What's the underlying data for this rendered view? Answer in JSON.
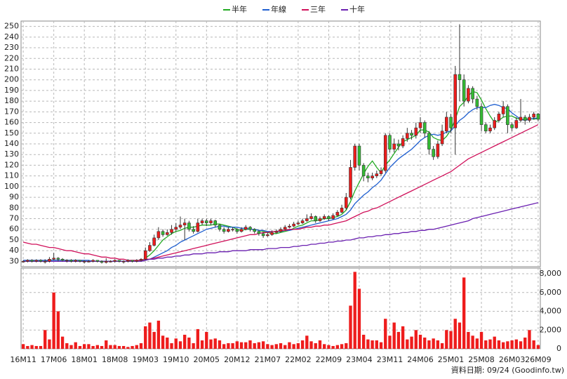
{
  "chart_data": {
    "type": "candlestick",
    "categories": [
      "16M11",
      null,
      null,
      null,
      null,
      null,
      null,
      "17M06",
      null,
      null,
      null,
      null,
      null,
      null,
      "18M01",
      null,
      null,
      null,
      null,
      null,
      null,
      "18M08",
      null,
      null,
      null,
      null,
      null,
      null,
      "19M03",
      null,
      null,
      null,
      null,
      null,
      null,
      "19M10",
      null,
      null,
      null,
      null,
      null,
      null,
      "20M05",
      null,
      null,
      null,
      null,
      null,
      null,
      "20M12",
      null,
      null,
      null,
      null,
      null,
      null,
      "21M07",
      null,
      null,
      null,
      null,
      null,
      null,
      "22M02",
      null,
      null,
      null,
      null,
      null,
      null,
      "22M09",
      null,
      null,
      null,
      null,
      null,
      null,
      "23M04",
      null,
      null,
      null,
      null,
      null,
      null,
      "23M11",
      null,
      null,
      null,
      null,
      null,
      null,
      "24M06",
      null,
      null,
      null,
      null,
      null,
      null,
      "25M01",
      null,
      null,
      null,
      null,
      null,
      null,
      "25M08",
      null,
      null,
      null,
      null,
      null,
      null,
      "26M03",
      null,
      null,
      null,
      null,
      null,
      "26M09"
    ],
    "open": [
      30,
      30,
      31,
      30,
      31,
      30,
      30,
      32,
      33,
      32,
      31,
      31,
      30,
      31,
      30,
      30,
      30,
      31,
      30,
      29,
      30,
      30,
      31,
      30,
      30,
      31,
      30,
      31,
      32,
      40,
      45,
      52,
      58,
      55,
      57,
      60,
      62,
      64,
      66,
      60,
      58,
      66,
      68,
      66,
      68,
      64,
      60,
      58,
      60,
      60,
      58,
      60,
      62,
      60,
      58,
      56,
      54,
      55,
      57,
      58,
      60,
      62,
      63,
      65,
      66,
      68,
      70,
      72,
      68,
      70,
      72,
      70,
      73,
      76,
      80,
      90,
      118,
      138,
      120,
      110,
      108,
      110,
      112,
      115,
      148,
      135,
      140,
      138,
      145,
      150,
      148,
      155,
      160,
      150,
      135,
      128,
      140,
      152,
      165,
      155,
      205,
      200,
      180,
      192,
      182,
      175,
      158,
      152,
      155,
      162,
      168,
      175,
      158,
      155,
      162,
      165,
      162,
      165,
      168
    ],
    "high": [
      31,
      32,
      32,
      32,
      32,
      32,
      34,
      38,
      34,
      33,
      32,
      32,
      32,
      31,
      31,
      31,
      32,
      31,
      31,
      33,
      31,
      32,
      31,
      31,
      32,
      31,
      32,
      33,
      43,
      48,
      55,
      62,
      60,
      60,
      64,
      66,
      72,
      70,
      68,
      63,
      70,
      70,
      70,
      70,
      69,
      65,
      62,
      62,
      62,
      61,
      62,
      64,
      63,
      61,
      59,
      57,
      57,
      59,
      60,
      62,
      64,
      65,
      67,
      68,
      70,
      74,
      75,
      73,
      72,
      74,
      73,
      75,
      78,
      83,
      94,
      125,
      140,
      140,
      122,
      113,
      113,
      115,
      118,
      150,
      150,
      145,
      144,
      148,
      155,
      153,
      160,
      165,
      162,
      152,
      138,
      143,
      158,
      170,
      168,
      213,
      252,
      205,
      195,
      194,
      185,
      178,
      160,
      158,
      165,
      170,
      180,
      177,
      160,
      165,
      182,
      167,
      168,
      170,
      169
    ],
    "low": [
      29,
      29,
      29,
      29,
      29,
      28,
      29,
      31,
      30,
      30,
      29,
      29,
      29,
      29,
      28,
      29,
      29,
      29,
      28,
      28,
      29,
      29,
      29,
      28,
      29,
      29,
      29,
      30,
      31,
      39,
      44,
      50,
      53,
      54,
      55,
      58,
      60,
      50,
      58,
      56,
      57,
      64,
      63,
      64,
      62,
      58,
      56,
      57,
      58,
      56,
      57,
      59,
      58,
      56,
      54,
      52,
      53,
      54,
      56,
      57,
      59,
      61,
      62,
      64,
      65,
      67,
      69,
      66,
      67,
      69,
      68,
      69,
      72,
      75,
      78,
      88,
      115,
      115,
      105,
      104,
      106,
      108,
      110,
      113,
      132,
      132,
      134,
      136,
      142,
      144,
      145,
      150,
      146,
      130,
      125,
      126,
      138,
      150,
      150,
      130,
      180,
      175,
      178,
      178,
      172,
      152,
      150,
      150,
      153,
      160,
      165,
      150,
      152,
      154,
      160,
      158,
      160,
      163,
      161
    ],
    "close": [
      30,
      31,
      30,
      31,
      30,
      30,
      32,
      33,
      32,
      31,
      31,
      30,
      31,
      30,
      30,
      30,
      31,
      30,
      29,
      30,
      30,
      31,
      30,
      30,
      31,
      30,
      31,
      32,
      40,
      45,
      52,
      58,
      55,
      57,
      60,
      62,
      64,
      66,
      60,
      58,
      66,
      68,
      66,
      68,
      64,
      60,
      58,
      60,
      60,
      58,
      60,
      62,
      60,
      58,
      56,
      54,
      55,
      57,
      58,
      60,
      62,
      63,
      65,
      66,
      68,
      70,
      72,
      68,
      70,
      72,
      70,
      73,
      76,
      80,
      90,
      118,
      138,
      120,
      110,
      108,
      110,
      112,
      115,
      148,
      135,
      140,
      138,
      145,
      150,
      148,
      155,
      160,
      150,
      135,
      128,
      140,
      152,
      165,
      155,
      205,
      200,
      180,
      192,
      182,
      175,
      158,
      152,
      155,
      162,
      168,
      175,
      158,
      155,
      162,
      165,
      162,
      165,
      168,
      163
    ],
    "volume": [
      500,
      300,
      400,
      300,
      300,
      2000,
      1000,
      6000,
      4000,
      1300,
      600,
      400,
      700,
      300,
      500,
      500,
      300,
      400,
      300,
      900,
      400,
      400,
      300,
      300,
      200,
      300,
      400,
      600,
      2400,
      2800,
      1800,
      3000,
      1400,
      1200,
      600,
      1100,
      800,
      1500,
      1200,
      600,
      2100,
      900,
      1800,
      1000,
      1100,
      900,
      500,
      600,
      600,
      800,
      700,
      700,
      900,
      600,
      700,
      800,
      500,
      400,
      500,
      600,
      400,
      700,
      500,
      600,
      900,
      1400,
      800,
      600,
      900,
      500,
      400,
      300,
      400,
      500,
      600,
      4600,
      8200,
      6400,
      1500,
      1000,
      900,
      900,
      700,
      3200,
      1400,
      2800,
      1800,
      2400,
      1000,
      1300,
      2000,
      1500,
      1200,
      900,
      1100,
      900,
      600,
      2000,
      1900,
      3200,
      2800,
      7600,
      1800,
      1400,
      1100,
      1800,
      900,
      1000,
      1300,
      900,
      700,
      800,
      900,
      1000,
      800,
      1200,
      2000,
      900,
      400
    ],
    "up_color": "#ee1c1c",
    "down_color": "#33bb33",
    "volume_color": "#ee1c1c",
    "series": [
      {
        "name": "半年",
        "color": "#22aa22",
        "values": [
          30,
          30,
          30,
          30,
          30,
          30,
          31,
          31,
          31,
          31,
          31,
          31,
          31,
          31,
          30,
          30,
          30,
          30,
          30,
          30,
          30,
          30,
          30,
          30,
          30,
          30,
          30,
          30,
          33,
          36,
          40,
          45,
          50,
          53,
          56,
          58,
          59,
          61,
          62,
          62,
          63,
          64,
          64,
          64,
          65,
          65,
          64,
          63,
          62,
          60,
          59,
          60,
          60,
          60,
          59,
          58,
          57,
          56,
          56,
          57,
          58,
          59,
          61,
          63,
          64,
          66,
          68,
          68,
          69,
          70,
          70,
          71,
          72,
          74,
          78,
          86,
          96,
          104,
          112,
          119,
          124,
          118,
          113,
          120,
          125,
          131,
          137,
          142,
          144,
          146,
          148,
          153,
          153,
          151,
          146,
          144,
          143,
          147,
          153,
          163,
          175,
          179,
          185,
          189,
          188,
          181,
          173,
          166,
          160,
          162,
          165,
          166,
          166,
          164,
          163,
          163,
          164,
          163,
          164
        ]
      },
      {
        "name": "年線",
        "color": "#1f5fd0",
        "values": [
          31,
          31,
          31,
          31,
          31,
          31,
          31,
          31,
          31,
          31,
          31,
          31,
          31,
          31,
          31,
          31,
          30,
          30,
          30,
          30,
          30,
          30,
          30,
          30,
          30,
          30,
          30,
          30,
          31,
          32,
          34,
          36,
          38,
          40,
          43,
          45,
          48,
          50,
          52,
          54,
          56,
          58,
          60,
          61,
          62,
          63,
          63,
          62,
          62,
          62,
          61,
          61,
          60,
          60,
          59,
          59,
          58,
          58,
          58,
          58,
          59,
          59,
          60,
          61,
          62,
          63,
          64,
          65,
          66,
          67,
          68,
          69,
          70,
          72,
          74,
          78,
          84,
          88,
          92,
          95,
          99,
          102,
          106,
          112,
          118,
          122,
          126,
          129,
          132,
          135,
          139,
          143,
          146,
          148,
          149,
          148,
          149,
          151,
          152,
          157,
          162,
          165,
          169,
          172,
          174,
          174,
          174,
          176,
          177,
          176,
          174,
          173,
          169,
          166,
          163,
          162,
          163,
          164,
          164
        ]
      },
      {
        "name": "三年",
        "color": "#d0105a",
        "values": [
          48,
          47,
          46,
          46,
          45,
          44,
          43,
          43,
          42,
          41,
          40,
          40,
          39,
          38,
          37,
          37,
          36,
          35,
          34,
          34,
          33,
          33,
          32,
          32,
          31,
          31,
          31,
          31,
          32,
          32,
          33,
          34,
          35,
          36,
          37,
          38,
          39,
          40,
          41,
          42,
          43,
          44,
          45,
          46,
          47,
          48,
          49,
          50,
          51,
          52,
          53,
          54,
          55,
          55,
          56,
          57,
          57,
          58,
          58,
          59,
          59,
          60,
          60,
          60,
          61,
          62,
          62,
          63,
          63,
          64,
          64,
          65,
          66,
          67,
          68,
          70,
          72,
          74,
          76,
          77,
          79,
          80,
          82,
          84,
          86,
          88,
          90,
          92,
          94,
          96,
          98,
          100,
          102,
          104,
          106,
          108,
          110,
          112,
          114,
          117,
          120,
          123,
          126,
          128,
          130,
          132,
          134,
          136,
          138,
          140,
          142,
          144,
          146,
          148,
          150,
          152,
          154,
          156,
          158
        ]
      },
      {
        "name": "十年",
        "color": "#6a1fb0",
        "values": [
          30,
          30,
          30,
          30,
          30,
          30,
          30,
          30,
          30,
          30,
          30,
          30,
          30,
          30,
          30,
          30,
          30,
          30,
          30,
          30,
          30,
          30,
          30,
          30,
          30,
          30,
          30,
          30,
          31,
          32,
          32,
          33,
          33,
          34,
          34,
          35,
          35,
          36,
          36,
          37,
          37,
          37,
          38,
          38,
          38,
          39,
          39,
          39,
          40,
          40,
          40,
          40,
          41,
          41,
          41,
          41,
          42,
          42,
          42,
          43,
          43,
          43,
          44,
          44,
          45,
          45,
          46,
          46,
          47,
          47,
          48,
          48,
          49,
          49,
          50,
          50,
          51,
          52,
          52,
          53,
          53,
          54,
          54,
          55,
          55,
          56,
          56,
          57,
          57,
          58,
          58,
          59,
          59,
          60,
          60,
          61,
          62,
          63,
          64,
          65,
          66,
          67,
          68,
          70,
          71,
          72,
          73,
          74,
          75,
          76,
          77,
          78,
          79,
          80,
          81,
          82,
          83,
          84,
          85
        ]
      }
    ],
    "ylim": [
      25,
      255
    ],
    "yticks": [
      30,
      40,
      50,
      60,
      70,
      80,
      90,
      100,
      110,
      120,
      130,
      140,
      150,
      160,
      170,
      180,
      190,
      200,
      210,
      220,
      230,
      240,
      250
    ],
    "volume_lim": [
      0,
      8600
    ],
    "volume_ticks": [
      0,
      {
        "value": 2000,
        "label": "2,000"
      },
      {
        "value": 4000,
        "label": "4,000"
      },
      {
        "value": 6000,
        "label": "6,000"
      },
      {
        "value": 8000,
        "label": "8,000"
      }
    ],
    "grid": true,
    "legend_position": "top",
    "source_note": "資料日期: 09/24 (Goodinfo.tw)"
  }
}
